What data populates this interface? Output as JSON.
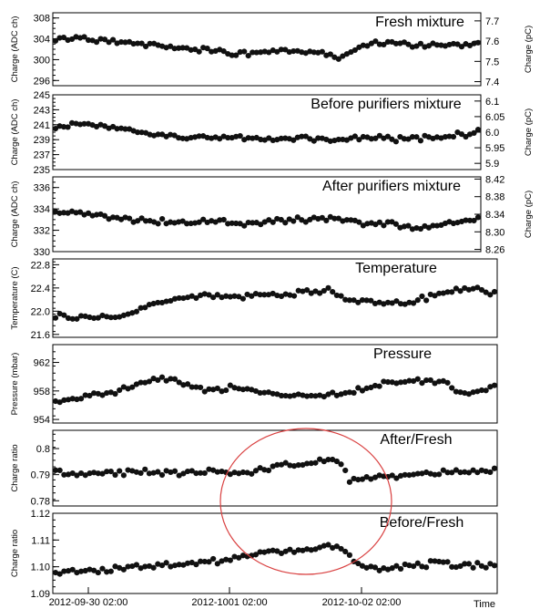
{
  "chart_data": {
    "type": "scatter",
    "x_axis": {
      "label": "Time",
      "ticks": [
        "2012-09-30 02:00",
        "2012-1001 02:00",
        "2012-10-02 02:00"
      ]
    },
    "panels": [
      {
        "id": "fresh",
        "title": "Fresh mixture",
        "ylabel": "Charge (ADC ch)",
        "ylim": [
          295,
          309
        ],
        "yticks": [
          "296",
          "300",
          "304",
          "308"
        ],
        "right_ylabel": "Charge (pC)",
        "right_ylim": [
          7.38,
          7.74
        ],
        "right_ticks": [
          "7.4",
          "7.5",
          "7.6",
          "7.7"
        ],
        "series": [
          {
            "x": 0.0,
            "y": 303.9
          },
          {
            "x": 0.07,
            "y": 304.1
          },
          {
            "x": 0.14,
            "y": 303.5
          },
          {
            "x": 0.22,
            "y": 303.0
          },
          {
            "x": 0.3,
            "y": 302.2
          },
          {
            "x": 0.36,
            "y": 302.0
          },
          {
            "x": 0.42,
            "y": 301.0
          },
          {
            "x": 0.48,
            "y": 301.4
          },
          {
            "x": 0.55,
            "y": 301.8
          },
          {
            "x": 0.62,
            "y": 301.3
          },
          {
            "x": 0.68,
            "y": 300.3
          },
          {
            "x": 0.72,
            "y": 302.6
          },
          {
            "x": 0.78,
            "y": 303.4
          },
          {
            "x": 0.85,
            "y": 302.8
          },
          {
            "x": 0.92,
            "y": 302.6
          },
          {
            "x": 1.0,
            "y": 303.0
          }
        ]
      },
      {
        "id": "before",
        "title": "Before purifiers mixture",
        "ylabel": "Charge (ADC ch)",
        "ylim": [
          235,
          245
        ],
        "yticks": [
          "235",
          "237",
          "239",
          "241",
          "243",
          "245"
        ],
        "right_ylabel": "Charge (pC)",
        "right_ylim": [
          5.88,
          6.12
        ],
        "right_ticks": [
          "5.9",
          "5.95",
          "6.0",
          "6.05",
          "6.1"
        ],
        "series": [
          {
            "x": 0.0,
            "y": 240.9
          },
          {
            "x": 0.07,
            "y": 241.0
          },
          {
            "x": 0.14,
            "y": 240.5
          },
          {
            "x": 0.22,
            "y": 239.9
          },
          {
            "x": 0.3,
            "y": 239.2
          },
          {
            "x": 0.38,
            "y": 239.4
          },
          {
            "x": 0.45,
            "y": 239.1
          },
          {
            "x": 0.52,
            "y": 239.0
          },
          {
            "x": 0.6,
            "y": 239.1
          },
          {
            "x": 0.68,
            "y": 238.9
          },
          {
            "x": 0.75,
            "y": 239.3
          },
          {
            "x": 0.82,
            "y": 239.0
          },
          {
            "x": 0.9,
            "y": 239.3
          },
          {
            "x": 1.0,
            "y": 240.0
          }
        ]
      },
      {
        "id": "after",
        "title": "After purifiers mixture",
        "ylabel": "Charge (ADC ch)",
        "ylim": [
          330,
          337
        ],
        "yticks": [
          "330",
          "332",
          "334",
          "336"
        ],
        "right_ylabel": "Charge (pC)",
        "right_ylim": [
          8.255,
          8.425
        ],
        "right_ticks": [
          "8.26",
          "8.30",
          "8.34",
          "8.38",
          "8.42"
        ],
        "series": [
          {
            "x": 0.0,
            "y": 333.7
          },
          {
            "x": 0.07,
            "y": 333.5
          },
          {
            "x": 0.14,
            "y": 333.2
          },
          {
            "x": 0.22,
            "y": 332.9
          },
          {
            "x": 0.3,
            "y": 332.6
          },
          {
            "x": 0.38,
            "y": 332.9
          },
          {
            "x": 0.45,
            "y": 332.6
          },
          {
            "x": 0.52,
            "y": 332.9
          },
          {
            "x": 0.6,
            "y": 333.0
          },
          {
            "x": 0.68,
            "y": 333.1
          },
          {
            "x": 0.72,
            "y": 332.5
          },
          {
            "x": 0.78,
            "y": 332.7
          },
          {
            "x": 0.85,
            "y": 332.2
          },
          {
            "x": 0.92,
            "y": 332.6
          },
          {
            "x": 1.0,
            "y": 333.2
          }
        ]
      },
      {
        "id": "temperature",
        "title": "Temperature",
        "ylabel": "Temperature (C)",
        "ylim": [
          21.55,
          22.9
        ],
        "yticks": [
          "21.6",
          "22.0",
          "22.4",
          "22.8"
        ],
        "series": [
          {
            "x": 0.0,
            "y": 21.92
          },
          {
            "x": 0.06,
            "y": 21.9
          },
          {
            "x": 0.12,
            "y": 21.89
          },
          {
            "x": 0.17,
            "y": 21.95
          },
          {
            "x": 0.22,
            "y": 22.1
          },
          {
            "x": 0.28,
            "y": 22.22
          },
          {
            "x": 0.34,
            "y": 22.27
          },
          {
            "x": 0.4,
            "y": 22.25
          },
          {
            "x": 0.47,
            "y": 22.27
          },
          {
            "x": 0.53,
            "y": 22.3
          },
          {
            "x": 0.58,
            "y": 22.33
          },
          {
            "x": 0.62,
            "y": 22.36
          },
          {
            "x": 0.66,
            "y": 22.2
          },
          {
            "x": 0.72,
            "y": 22.14
          },
          {
            "x": 0.8,
            "y": 22.15
          },
          {
            "x": 0.86,
            "y": 22.25
          },
          {
            "x": 0.91,
            "y": 22.4
          },
          {
            "x": 0.96,
            "y": 22.38
          },
          {
            "x": 1.0,
            "y": 22.31
          }
        ]
      },
      {
        "id": "pressure",
        "title": "Pressure",
        "ylabel": "Pressure (mbar)",
        "ylim": [
          953.5,
          964.5
        ],
        "yticks": [
          "954",
          "958",
          "962"
        ],
        "series": [
          {
            "x": 0.0,
            "y": 956.7
          },
          {
            "x": 0.06,
            "y": 957.0
          },
          {
            "x": 0.11,
            "y": 957.4
          },
          {
            "x": 0.17,
            "y": 958.6
          },
          {
            "x": 0.22,
            "y": 959.5
          },
          {
            "x": 0.26,
            "y": 959.8
          },
          {
            "x": 0.31,
            "y": 958.4
          },
          {
            "x": 0.36,
            "y": 958.1
          },
          {
            "x": 0.41,
            "y": 958.5
          },
          {
            "x": 0.47,
            "y": 957.8
          },
          {
            "x": 0.53,
            "y": 957.5
          },
          {
            "x": 0.6,
            "y": 957.4
          },
          {
            "x": 0.66,
            "y": 957.4
          },
          {
            "x": 0.7,
            "y": 958.4
          },
          {
            "x": 0.76,
            "y": 959.0
          },
          {
            "x": 0.82,
            "y": 959.3
          },
          {
            "x": 0.88,
            "y": 959.4
          },
          {
            "x": 0.92,
            "y": 957.8
          },
          {
            "x": 0.97,
            "y": 958.0
          },
          {
            "x": 1.0,
            "y": 958.8
          }
        ]
      },
      {
        "id": "after_fresh",
        "title": "After/Fresh",
        "ylabel": "Charge ratio",
        "ylim": [
          0.778,
          0.807
        ],
        "yticks": [
          "0.78",
          "0.79",
          "0.8"
        ],
        "series": [
          {
            "x": 0.0,
            "y": 0.791
          },
          {
            "x": 0.07,
            "y": 0.7905
          },
          {
            "x": 0.14,
            "y": 0.7905
          },
          {
            "x": 0.21,
            "y": 0.791
          },
          {
            "x": 0.28,
            "y": 0.7905
          },
          {
            "x": 0.35,
            "y": 0.791
          },
          {
            "x": 0.42,
            "y": 0.7905
          },
          {
            "x": 0.47,
            "y": 0.792
          },
          {
            "x": 0.53,
            "y": 0.7935
          },
          {
            "x": 0.59,
            "y": 0.7945
          },
          {
            "x": 0.63,
            "y": 0.796
          },
          {
            "x": 0.65,
            "y": 0.794
          },
          {
            "x": 0.67,
            "y": 0.788
          },
          {
            "x": 0.73,
            "y": 0.789
          },
          {
            "x": 0.8,
            "y": 0.79
          },
          {
            "x": 0.86,
            "y": 0.7905
          },
          {
            "x": 0.92,
            "y": 0.791
          },
          {
            "x": 1.0,
            "y": 0.7915
          }
        ]
      },
      {
        "id": "before_fresh",
        "title": "Before/Fresh",
        "ylabel": "Charge ratio",
        "ylim": [
          1.09,
          1.12
        ],
        "yticks": [
          "1.09",
          "1.10",
          "1.11",
          "1.12"
        ],
        "series": [
          {
            "x": 0.0,
            "y": 1.098
          },
          {
            "x": 0.07,
            "y": 1.0985
          },
          {
            "x": 0.14,
            "y": 1.099
          },
          {
            "x": 0.21,
            "y": 1.1
          },
          {
            "x": 0.28,
            "y": 1.101
          },
          {
            "x": 0.35,
            "y": 1.102
          },
          {
            "x": 0.41,
            "y": 1.103
          },
          {
            "x": 0.46,
            "y": 1.1055
          },
          {
            "x": 0.52,
            "y": 1.105
          },
          {
            "x": 0.57,
            "y": 1.1065
          },
          {
            "x": 0.62,
            "y": 1.1085
          },
          {
            "x": 0.66,
            "y": 1.106
          },
          {
            "x": 0.69,
            "y": 1.1
          },
          {
            "x": 0.74,
            "y": 1.0995
          },
          {
            "x": 0.8,
            "y": 1.1005
          },
          {
            "x": 0.86,
            "y": 1.101
          },
          {
            "x": 0.93,
            "y": 1.1005
          },
          {
            "x": 1.0,
            "y": 1.1005
          }
        ]
      }
    ],
    "colors": {
      "markers": "#111111",
      "frame": "#000000",
      "highlight_ellipse": "#d94040"
    }
  }
}
